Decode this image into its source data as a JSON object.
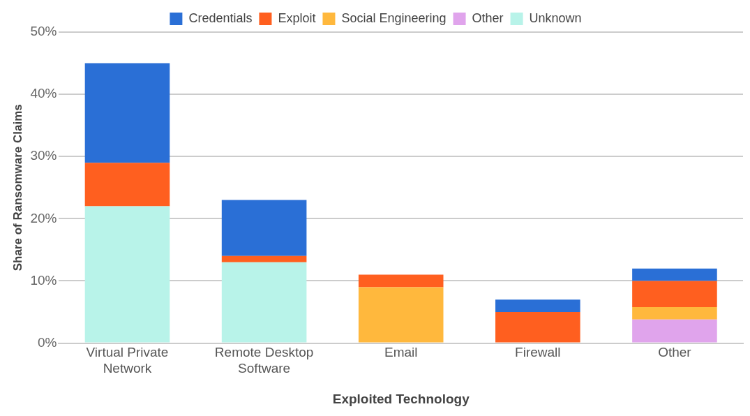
{
  "chart_data": {
    "type": "bar",
    "stacked": true,
    "xlabel": "Exploited Technology",
    "ylabel": "Share of Ransomware Claims",
    "categories": [
      "Virtual Private Network",
      "Remote Desktop Software",
      "Email",
      "Firewall",
      "Other"
    ],
    "series": [
      {
        "name": "Unknown",
        "color": "#b8f3e9",
        "values": [
          22,
          13,
          0,
          0,
          0
        ]
      },
      {
        "name": "Other",
        "color": "#e0a4ec",
        "values": [
          0,
          0,
          0,
          0,
          3.8
        ]
      },
      {
        "name": "Social Engineering",
        "color": "#ffb83d",
        "values": [
          0,
          0,
          9,
          0,
          2
        ]
      },
      {
        "name": "Exploit",
        "color": "#ff5f1f",
        "values": [
          7,
          1,
          2,
          5,
          4.2
        ]
      },
      {
        "name": "Credentials",
        "color": "#2a6fd6",
        "values": [
          16,
          9,
          0,
          2,
          2
        ]
      }
    ],
    "ylim": [
      0,
      50
    ],
    "yticks": [
      {
        "value": 0,
        "label": "0%"
      },
      {
        "value": 10,
        "label": "10%"
      },
      {
        "value": 20,
        "label": "20%"
      },
      {
        "value": 30,
        "label": "30%"
      },
      {
        "value": 40,
        "label": "40%"
      },
      {
        "value": 50,
        "label": "50%"
      }
    ],
    "grid": "y",
    "legend": "top"
  }
}
